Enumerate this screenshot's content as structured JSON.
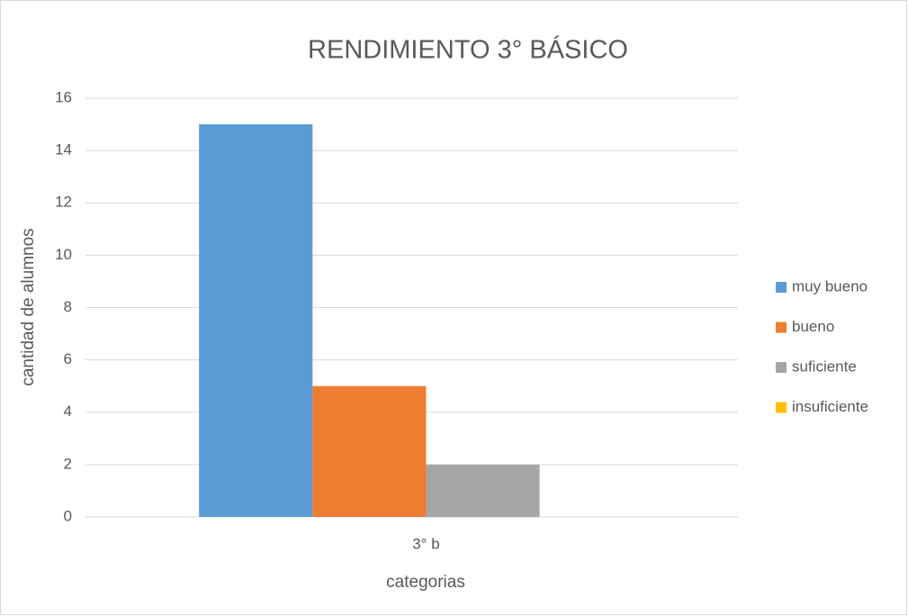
{
  "chart_data": {
    "type": "bar",
    "title": "RENDIMIENTO 3° BÁSICO",
    "x_label": "categorias",
    "y_label": "cantidad de alumnos",
    "categories": [
      "3° b"
    ],
    "series": [
      {
        "name": "muy bueno",
        "color": "#5b9bd5",
        "values": [
          15
        ]
      },
      {
        "name": "bueno",
        "color": "#ed7d31",
        "values": [
          5
        ]
      },
      {
        "name": "suficiente",
        "color": "#a5a5a5",
        "values": [
          2
        ]
      },
      {
        "name": "insuficiente",
        "color": "#ffc000",
        "values": [
          0
        ]
      }
    ],
    "ylim": [
      0,
      16
    ],
    "yticks": [
      0,
      2,
      4,
      6,
      8,
      10,
      12,
      14,
      16
    ],
    "grid": true,
    "legend": "right"
  }
}
